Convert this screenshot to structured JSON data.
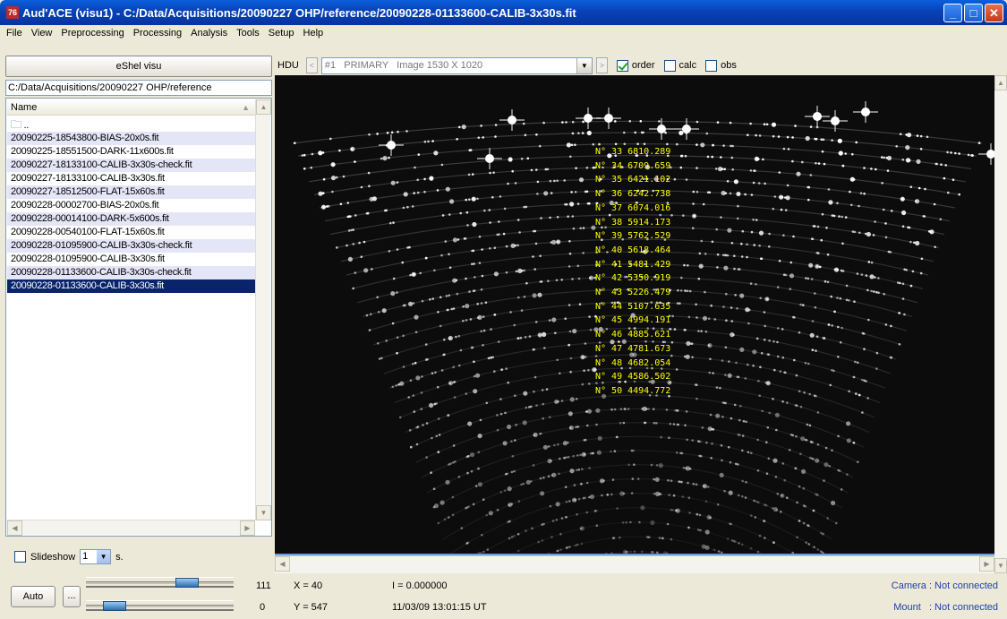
{
  "window": {
    "title": "Aud'ACE (visu1) - C:/Data/Acquisitions/20090227 OHP/reference/20090228-01133600-CALIB-3x30s.fit",
    "controls": [
      "minimize",
      "maximize",
      "close"
    ]
  },
  "menu": [
    "File",
    "View",
    "Preprocessing",
    "Processing",
    "Analysis",
    "Tools",
    "Setup",
    "Help"
  ],
  "left_panel": {
    "visu_button": "eShel visu",
    "path": "C:/Data/Acquisitions/20090227 OHP/reference",
    "column_header": "Name",
    "parent_dir": "..",
    "files": [
      "20090225-18543800-BIAS-20x0s.fit",
      "20090225-18551500-DARK-11x600s.fit",
      "20090227-18133100-CALIB-3x30s-check.fit",
      "20090227-18133100-CALIB-3x30s.fit",
      "20090227-18512500-FLAT-15x60s.fit",
      "20090228-00002700-BIAS-20x0s.fit",
      "20090228-00014100-DARK-5x600s.fit",
      "20090228-00540100-FLAT-15x60s.fit",
      "20090228-01095900-CALIB-3x30s-check.fit",
      "20090228-01095900-CALIB-3x30s.fit",
      "20090228-01133600-CALIB-3x30s-check.fit",
      "20090228-01133600-CALIB-3x30s.fit"
    ],
    "selected_index": 11,
    "slideshow_label": "Slideshow",
    "slideshow_value": "1",
    "slideshow_unit": "s."
  },
  "hdu_bar": {
    "label": "HDU",
    "hdu_value": "#1   PRIMARY   Image 1530 X 1020",
    "options": [
      {
        "label": "order",
        "checked": true
      },
      {
        "label": "calc",
        "checked": false
      },
      {
        "label": "obs",
        "checked": false
      }
    ]
  },
  "order_labels": [
    "N° 33  6810.289",
    "N° 34  6709.659",
    "N° 35  6421.102",
    "N° 36  6242.738",
    "N° 37  6074.016",
    "N° 38  5914.173",
    "N° 39  5762.529",
    "N° 40  5618.464",
    "N° 41  5481.429",
    "N° 42  5350.919",
    "N° 43  5226.479",
    "N° 44  5107.635",
    "N° 45  4994.191",
    "N° 46  4885.621",
    "N° 47  4781.673",
    "N° 48  4682.054",
    "N° 49  4586.502",
    "N° 50  4494.772"
  ],
  "status": {
    "auto_button": "Auto",
    "more_button": "...",
    "high_value": "111",
    "low_value": "0",
    "high_slider_fraction": 0.72,
    "low_slider_fraction": 0.14,
    "x_readout": "X = 40",
    "y_readout": "Y = 547",
    "intensity": "I = 0.000000",
    "datetime": "11/03/09 13:01:15 UT",
    "camera": "Camera : Not connected",
    "mount": "Mount   : Not connected"
  }
}
